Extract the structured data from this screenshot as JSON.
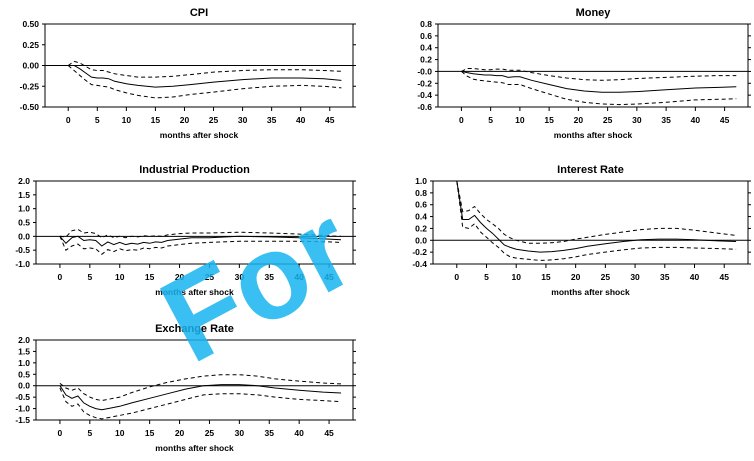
{
  "watermark": "For",
  "chart_data": [
    {
      "type": "line",
      "title": "CPI",
      "xlabel": "months after shock",
      "ylabel": "",
      "xlim": [
        -4,
        49
      ],
      "ylim": [
        -0.5,
        0.5
      ],
      "xticks": [
        0,
        5,
        10,
        15,
        20,
        25,
        30,
        35,
        40,
        45
      ],
      "yticks": [
        0.5,
        0.25,
        0.0,
        -0.25,
        -0.5
      ],
      "ytick_labels": [
        "0.50",
        "0.25",
        "0.00",
        "-0.25",
        "-0.50"
      ],
      "zero_line": true,
      "series": [
        {
          "style": "solid",
          "x": [
            0,
            1,
            2,
            3,
            4,
            5,
            6,
            7,
            8,
            10,
            12,
            15,
            18,
            21,
            25,
            30,
            35,
            40,
            44,
            47
          ],
          "y": [
            0,
            0.0,
            -0.04,
            -0.09,
            -0.14,
            -0.15,
            -0.15,
            -0.16,
            -0.19,
            -0.22,
            -0.24,
            -0.26,
            -0.25,
            -0.23,
            -0.2,
            -0.17,
            -0.15,
            -0.15,
            -0.16,
            -0.18
          ]
        },
        {
          "style": "dashed",
          "x": [
            0,
            1,
            2,
            3,
            4,
            5,
            6,
            7,
            8,
            10,
            12,
            15,
            18,
            21,
            25,
            30,
            35,
            40,
            44,
            47
          ],
          "y": [
            0,
            0.05,
            0.03,
            -0.01,
            -0.05,
            -0.06,
            -0.06,
            -0.08,
            -0.1,
            -0.12,
            -0.14,
            -0.14,
            -0.13,
            -0.11,
            -0.08,
            -0.06,
            -0.05,
            -0.05,
            -0.06,
            -0.07
          ]
        },
        {
          "style": "dashed",
          "x": [
            0,
            1,
            2,
            3,
            4,
            5,
            6,
            7,
            8,
            10,
            12,
            15,
            18,
            21,
            25,
            30,
            35,
            40,
            44,
            47
          ],
          "y": [
            0,
            -0.06,
            -0.12,
            -0.18,
            -0.23,
            -0.24,
            -0.25,
            -0.26,
            -0.29,
            -0.33,
            -0.36,
            -0.39,
            -0.38,
            -0.35,
            -0.32,
            -0.28,
            -0.25,
            -0.24,
            -0.25,
            -0.27
          ]
        }
      ]
    },
    {
      "type": "line",
      "title": "Money",
      "xlabel": "months after shock",
      "ylabel": "",
      "xlim": [
        -4,
        49
      ],
      "ylim": [
        -0.6,
        0.8
      ],
      "xticks": [
        0,
        5,
        10,
        15,
        20,
        25,
        30,
        35,
        40,
        45
      ],
      "yticks": [
        0.8,
        0.6,
        0.4,
        0.2,
        0.0,
        -0.2,
        -0.4,
        -0.6
      ],
      "ytick_labels": [
        "0.8",
        "0.6",
        "0.4",
        "0.2",
        "-0.0",
        "-0.2",
        "-0.4",
        "-0.6"
      ],
      "zero_line": true,
      "series": [
        {
          "style": "solid",
          "x": [
            0,
            1,
            2,
            3,
            4,
            5,
            6,
            7,
            8,
            9,
            10,
            12,
            15,
            18,
            21,
            24,
            27,
            30,
            35,
            40,
            44,
            47
          ],
          "y": [
            0,
            -0.02,
            -0.04,
            -0.05,
            -0.06,
            -0.06,
            -0.07,
            -0.07,
            -0.1,
            -0.09,
            -0.09,
            -0.15,
            -0.22,
            -0.29,
            -0.33,
            -0.35,
            -0.35,
            -0.34,
            -0.31,
            -0.28,
            -0.27,
            -0.26
          ]
        },
        {
          "style": "dashed",
          "x": [
            0,
            1,
            2,
            3,
            4,
            5,
            6,
            7,
            8,
            9,
            10,
            12,
            15,
            18,
            21,
            24,
            27,
            30,
            35,
            40,
            44,
            47
          ],
          "y": [
            0,
            0.05,
            0.05,
            0.04,
            0.03,
            0.03,
            0.04,
            0.04,
            0.02,
            0.02,
            0.02,
            -0.02,
            -0.07,
            -0.11,
            -0.14,
            -0.15,
            -0.14,
            -0.12,
            -0.1,
            -0.08,
            -0.07,
            -0.07
          ]
        },
        {
          "style": "dashed",
          "x": [
            0,
            1,
            2,
            3,
            4,
            5,
            6,
            7,
            8,
            9,
            10,
            12,
            15,
            18,
            21,
            24,
            27,
            30,
            35,
            40,
            44,
            47
          ],
          "y": [
            0,
            -0.08,
            -0.13,
            -0.15,
            -0.16,
            -0.17,
            -0.18,
            -0.19,
            -0.22,
            -0.22,
            -0.22,
            -0.29,
            -0.38,
            -0.47,
            -0.52,
            -0.55,
            -0.56,
            -0.55,
            -0.52,
            -0.48,
            -0.47,
            -0.46
          ]
        }
      ]
    },
    {
      "type": "line",
      "title": "Industrial Production",
      "xlabel": "months after shock",
      "ylabel": "",
      "xlim": [
        -4,
        49
      ],
      "ylim": [
        -1.0,
        2.0
      ],
      "xticks": [
        0,
        5,
        10,
        15,
        20,
        25,
        30,
        35,
        40,
        45
      ],
      "yticks": [
        2.0,
        1.5,
        1.0,
        0.5,
        0.0,
        -0.5,
        -1.0
      ],
      "ytick_labels": [
        "2.0",
        "1.5",
        "1.0",
        "0.5",
        "0.0",
        "-0.5",
        "-1.0"
      ],
      "zero_line": true,
      "series": [
        {
          "style": "solid",
          "x": [
            0,
            1,
            2,
            3,
            4,
            5,
            6,
            7,
            8,
            9,
            10,
            11,
            12,
            13,
            14,
            15,
            16,
            17,
            18,
            20,
            22,
            25,
            30,
            35,
            40,
            45,
            47
          ],
          "y": [
            0,
            -0.25,
            -0.05,
            0.0,
            -0.15,
            -0.12,
            -0.15,
            -0.35,
            -0.2,
            -0.3,
            -0.22,
            -0.3,
            -0.25,
            -0.28,
            -0.22,
            -0.25,
            -0.2,
            -0.22,
            -0.15,
            -0.1,
            -0.05,
            -0.05,
            0.0,
            -0.02,
            -0.05,
            -0.1,
            -0.12
          ]
        },
        {
          "style": "dashed",
          "x": [
            0,
            1,
            2,
            3,
            4,
            5,
            6,
            7,
            8,
            9,
            10,
            11,
            12,
            13,
            14,
            15,
            16,
            17,
            18,
            20,
            22,
            25,
            30,
            35,
            40,
            45,
            47
          ],
          "y": [
            0,
            -0.02,
            0.2,
            0.25,
            0.12,
            0.15,
            0.1,
            -0.05,
            0.05,
            -0.05,
            0.0,
            -0.05,
            0.0,
            -0.02,
            0.02,
            0.0,
            0.02,
            0.0,
            0.05,
            0.1,
            0.12,
            0.12,
            0.15,
            0.12,
            0.08,
            0.02,
            0.0
          ]
        },
        {
          "style": "dashed",
          "x": [
            0,
            1,
            2,
            3,
            4,
            5,
            6,
            7,
            8,
            9,
            10,
            11,
            12,
            13,
            14,
            15,
            16,
            17,
            18,
            20,
            22,
            25,
            30,
            35,
            40,
            45,
            47
          ],
          "y": [
            0,
            -0.5,
            -0.35,
            -0.28,
            -0.45,
            -0.42,
            -0.45,
            -0.65,
            -0.48,
            -0.55,
            -0.45,
            -0.52,
            -0.48,
            -0.5,
            -0.42,
            -0.45,
            -0.4,
            -0.42,
            -0.35,
            -0.3,
            -0.25,
            -0.22,
            -0.18,
            -0.18,
            -0.18,
            -0.2,
            -0.22
          ]
        }
      ]
    },
    {
      "type": "line",
      "title": "Interest Rate",
      "xlabel": "months after shock",
      "ylabel": "",
      "xlim": [
        -4,
        49
      ],
      "ylim": [
        -0.4,
        1.0
      ],
      "xticks": [
        0,
        5,
        10,
        15,
        20,
        25,
        30,
        35,
        40,
        45
      ],
      "yticks": [
        1.0,
        0.8,
        0.6,
        0.4,
        0.2,
        0.0,
        -0.2,
        -0.4
      ],
      "ytick_labels": [
        "1.0",
        "0.8",
        "0.6",
        "0.4",
        "0.2",
        "0.0",
        "-0.2",
        "-0.4"
      ],
      "zero_line": true,
      "series": [
        {
          "style": "solid",
          "x": [
            0,
            1,
            2,
            3,
            4,
            5,
            6,
            7,
            8,
            9,
            10,
            12,
            14,
            16,
            18,
            20,
            22,
            25,
            28,
            31,
            34,
            37,
            40,
            44,
            47
          ],
          "y": [
            1.0,
            0.35,
            0.35,
            0.42,
            0.3,
            0.2,
            0.12,
            0.02,
            -0.08,
            -0.12,
            -0.15,
            -0.18,
            -0.2,
            -0.19,
            -0.17,
            -0.14,
            -0.1,
            -0.06,
            -0.02,
            0.01,
            0.02,
            0.02,
            0.01,
            -0.01,
            -0.02
          ]
        },
        {
          "style": "dashed",
          "x": [
            0,
            1,
            2,
            3,
            4,
            5,
            6,
            7,
            8,
            9,
            10,
            12,
            14,
            16,
            18,
            20,
            22,
            25,
            28,
            31,
            34,
            37,
            40,
            44,
            47
          ],
          "y": [
            1.0,
            0.48,
            0.5,
            0.57,
            0.45,
            0.35,
            0.28,
            0.2,
            0.1,
            0.04,
            0.0,
            -0.05,
            -0.05,
            -0.04,
            -0.02,
            0.02,
            0.05,
            0.1,
            0.14,
            0.18,
            0.2,
            0.2,
            0.17,
            0.12,
            0.08
          ]
        },
        {
          "style": "dashed",
          "x": [
            0,
            1,
            2,
            3,
            4,
            5,
            6,
            7,
            8,
            9,
            10,
            12,
            14,
            16,
            18,
            20,
            22,
            25,
            28,
            31,
            34,
            37,
            40,
            44,
            47
          ],
          "y": [
            1.0,
            0.22,
            0.2,
            0.28,
            0.14,
            0.05,
            -0.04,
            -0.12,
            -0.22,
            -0.28,
            -0.3,
            -0.32,
            -0.34,
            -0.33,
            -0.31,
            -0.28,
            -0.24,
            -0.2,
            -0.16,
            -0.13,
            -0.12,
            -0.12,
            -0.13,
            -0.14,
            -0.15
          ]
        }
      ]
    },
    {
      "type": "line",
      "title": "Exchange Rate",
      "xlabel": "months after shock",
      "ylabel": "",
      "xlim": [
        -4,
        49
      ],
      "ylim": [
        -1.5,
        2.0
      ],
      "xticks": [
        0,
        5,
        10,
        15,
        20,
        25,
        30,
        35,
        40,
        45
      ],
      "yticks": [
        2.0,
        1.5,
        1.0,
        0.5,
        0.0,
        -0.5,
        -1.0,
        -1.5
      ],
      "ytick_labels": [
        "2.0",
        "1.5",
        "1.0",
        "0.5",
        "0.0",
        "-0.5",
        "-1.0",
        "-1.5"
      ],
      "zero_line": true,
      "series": [
        {
          "style": "solid",
          "x": [
            0,
            1,
            2,
            3,
            4,
            5,
            6,
            7,
            8,
            10,
            12,
            15,
            18,
            21,
            24,
            27,
            30,
            33,
            36,
            40,
            44,
            47
          ],
          "y": [
            0,
            -0.4,
            -0.55,
            -0.45,
            -0.75,
            -0.9,
            -1.0,
            -1.05,
            -1.0,
            -0.9,
            -0.75,
            -0.55,
            -0.35,
            -0.15,
            0.0,
            0.05,
            0.05,
            0.0,
            -0.1,
            -0.2,
            -0.28,
            -0.32
          ]
        },
        {
          "style": "dashed",
          "x": [
            0,
            1,
            2,
            3,
            4,
            5,
            6,
            7,
            8,
            10,
            12,
            15,
            18,
            21,
            24,
            27,
            30,
            33,
            36,
            40,
            44,
            47
          ],
          "y": [
            0.1,
            -0.1,
            -0.2,
            -0.1,
            -0.35,
            -0.5,
            -0.6,
            -0.65,
            -0.6,
            -0.5,
            -0.3,
            -0.05,
            0.15,
            0.3,
            0.42,
            0.48,
            0.48,
            0.42,
            0.3,
            0.2,
            0.12,
            0.08
          ]
        },
        {
          "style": "dashed",
          "x": [
            0,
            1,
            2,
            3,
            4,
            5,
            6,
            7,
            8,
            10,
            12,
            15,
            18,
            21,
            24,
            27,
            30,
            33,
            36,
            40,
            44,
            47
          ],
          "y": [
            -0.1,
            -0.7,
            -0.9,
            -0.8,
            -1.15,
            -1.3,
            -1.4,
            -1.45,
            -1.4,
            -1.3,
            -1.2,
            -1.0,
            -0.8,
            -0.6,
            -0.4,
            -0.35,
            -0.35,
            -0.4,
            -0.5,
            -0.6,
            -0.65,
            -0.7
          ]
        }
      ]
    }
  ]
}
